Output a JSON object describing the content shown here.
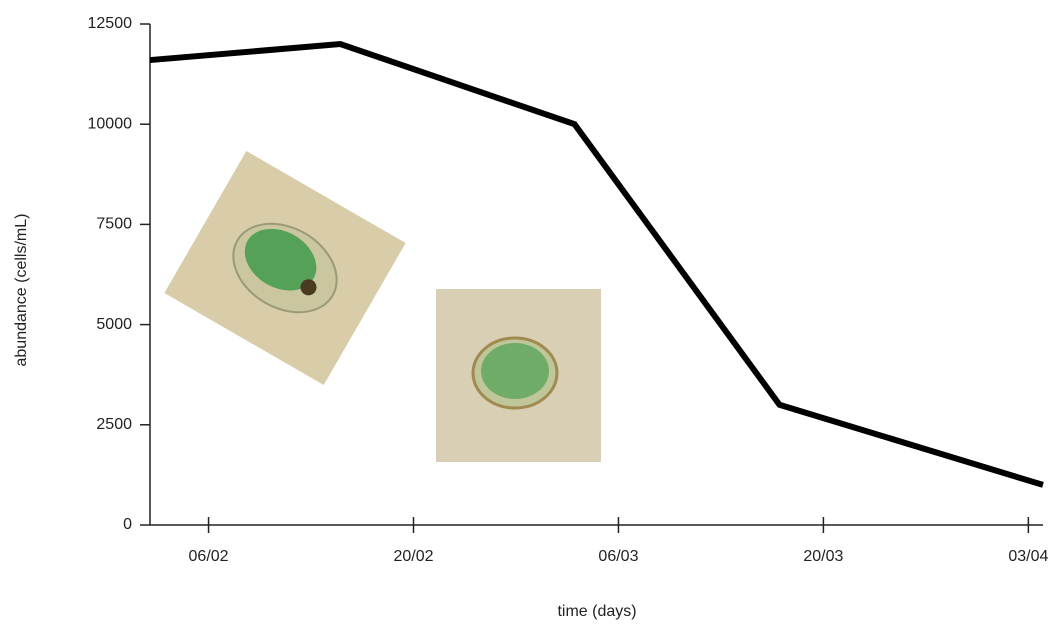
{
  "chart_data": {
    "type": "line",
    "x_label": "time (days)",
    "y_label": "abundance (cells/mL)",
    "x": [
      "02/02",
      "15/02",
      "03/03",
      "17/03",
      "04/04"
    ],
    "series": [
      {
        "color": "#000000",
        "values": [
          11600,
          12000,
          10000,
          3000,
          1000
        ]
      }
    ],
    "xlim": [
      "02/02",
      "04/04"
    ],
    "xticks": [
      "06/02",
      "20/02",
      "06/03",
      "20/03",
      "03/04"
    ],
    "ylim": [
      0,
      12500
    ],
    "yticks": [
      0,
      2500,
      5000,
      7500,
      10000,
      12500
    ]
  }
}
